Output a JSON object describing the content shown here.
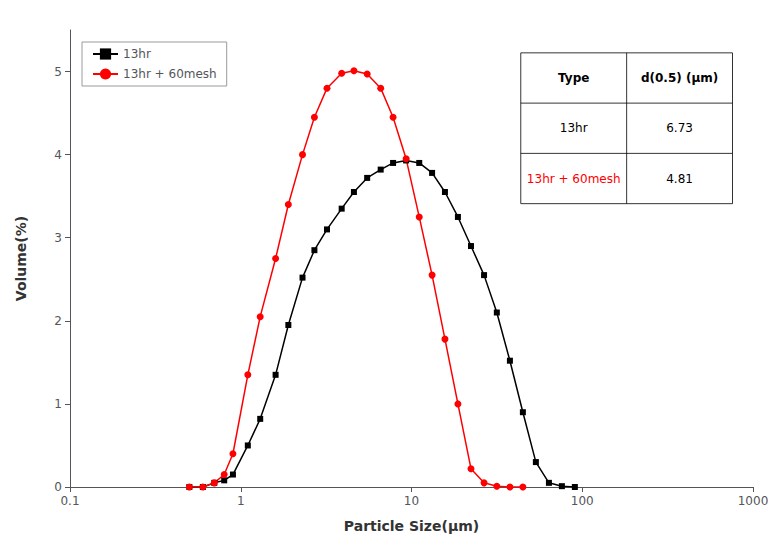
{
  "chart_data": {
    "type": "line",
    "xlabel": "Particle Size(μm)",
    "ylabel": "Volume(%)",
    "log": "x",
    "xlim": [
      0.1,
      1000
    ],
    "xticks": [
      0.1,
      1,
      10,
      100,
      1000
    ],
    "ylim": [
      0,
      5.5
    ],
    "yticks": [
      0,
      1,
      2,
      3,
      4,
      5
    ],
    "grid": false,
    "legend": "upper left",
    "series": [
      {
        "name": "13hr",
        "color": "#000000",
        "marker": "square",
        "x": [
          0.5,
          0.6,
          0.7,
          0.8,
          0.9,
          1.1,
          1.3,
          1.6,
          1.9,
          2.3,
          2.7,
          3.2,
          3.9,
          4.6,
          5.5,
          6.6,
          7.8,
          9.3,
          11.1,
          13.2,
          15.7,
          18.7,
          22.3,
          26.6,
          31.6,
          37.7,
          44.9,
          53.5,
          63.8,
          76.0,
          90.5
        ],
        "values": [
          0.0,
          0.0,
          0.05,
          0.08,
          0.15,
          0.5,
          0.82,
          1.35,
          1.95,
          2.52,
          2.85,
          3.1,
          3.35,
          3.55,
          3.72,
          3.82,
          3.9,
          3.93,
          3.9,
          3.78,
          3.55,
          3.25,
          2.9,
          2.55,
          2.1,
          1.52,
          0.9,
          0.3,
          0.05,
          0.01,
          0.0
        ]
      },
      {
        "name": "13hr + 60mesh",
        "color": "#ff0000",
        "marker": "circle",
        "x": [
          0.5,
          0.6,
          0.7,
          0.8,
          0.9,
          1.1,
          1.3,
          1.6,
          1.9,
          2.3,
          2.7,
          3.2,
          3.9,
          4.6,
          5.5,
          6.6,
          7.8,
          9.3,
          11.1,
          13.2,
          15.7,
          18.7,
          22.3,
          26.6,
          31.6,
          37.7,
          44.9
        ],
        "values": [
          0.0,
          0.0,
          0.05,
          0.15,
          0.4,
          1.35,
          2.05,
          2.75,
          3.4,
          4.0,
          4.45,
          4.8,
          4.98,
          5.01,
          4.97,
          4.8,
          4.45,
          3.95,
          3.25,
          2.55,
          1.78,
          1.0,
          0.22,
          0.05,
          0.01,
          0.0,
          0.0
        ]
      }
    ],
    "table": {
      "columns": [
        "Type",
        "d(0.5) (μm)"
      ],
      "rows": [
        {
          "cells": [
            "13hr",
            "6.73"
          ],
          "color": "#000000"
        },
        {
          "cells": [
            "13hr + 60mesh",
            "4.81"
          ],
          "color": "#ff0000"
        }
      ]
    }
  }
}
